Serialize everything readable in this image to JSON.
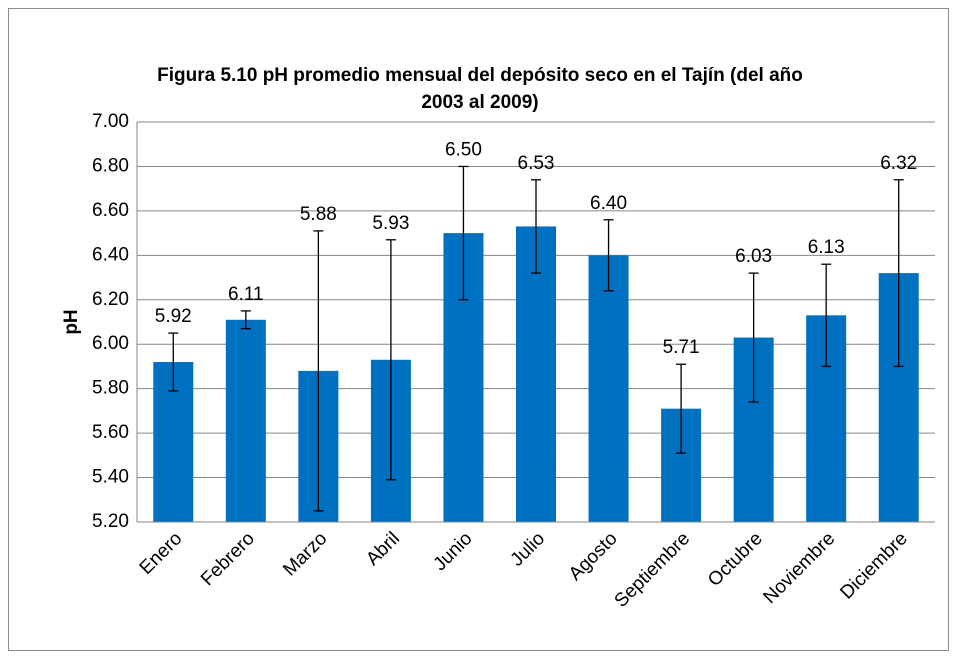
{
  "chart_data": {
    "type": "bar",
    "title": "Figura 5.10 pH promedio mensual del depósito seco en el Tajín (del año 2003 al 2009)",
    "y_label": "pH",
    "categories": [
      "Enero",
      "Febrero",
      "Marzo",
      "Abril",
      "Junio",
      "Julio",
      "Agosto",
      "Septiembre",
      "Octubre",
      "Noviembre",
      "Diciembre"
    ],
    "values": [
      5.92,
      6.11,
      5.88,
      5.93,
      6.5,
      6.53,
      6.4,
      5.71,
      6.03,
      6.13,
      6.32
    ],
    "value_labels": [
      "5.92",
      "6.11",
      "5.88",
      "5.93",
      "6.50",
      "6.53",
      "6.40",
      "5.71",
      "6.03",
      "6.13",
      "6.32"
    ],
    "errors": [
      0.13,
      0.04,
      0.63,
      0.54,
      0.3,
      0.21,
      0.16,
      0.2,
      0.29,
      0.23,
      0.42
    ],
    "color": "#0070c0",
    "ylim": [
      5.2,
      7.0
    ],
    "yticks": [
      {
        "value": 5.2,
        "label": "5.20"
      },
      {
        "value": 5.4,
        "label": "5.40"
      },
      {
        "value": 5.6,
        "label": "5.60"
      },
      {
        "value": 5.8,
        "label": "5.80"
      },
      {
        "value": 6.0,
        "label": "6.00"
      },
      {
        "value": 6.2,
        "label": "6.20"
      },
      {
        "value": 6.4,
        "label": "6.40"
      },
      {
        "value": 6.6,
        "label": "6.60"
      },
      {
        "value": 6.8,
        "label": "6.80"
      },
      {
        "value": 7.0,
        "label": "7.00"
      }
    ],
    "grid": true
  }
}
